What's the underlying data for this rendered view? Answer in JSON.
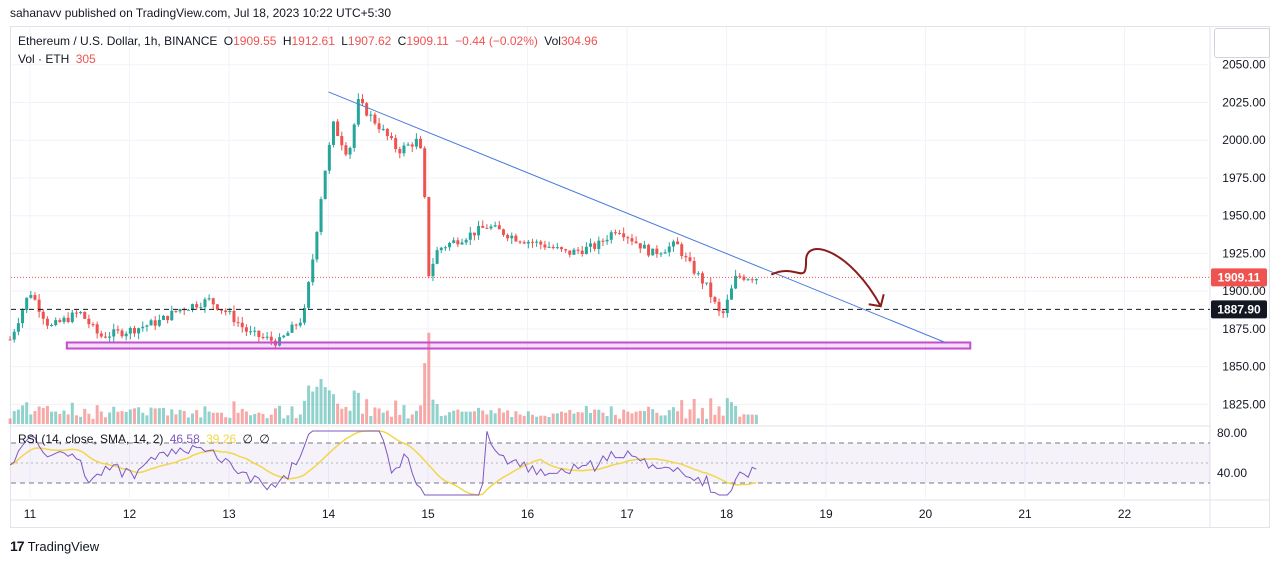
{
  "publish_line": "sahanavv published on TradingView.com, Jul 18, 2023 10:22 UTC+5:30",
  "legend": {
    "symbol": "Ethereum / U.S. Dollar, 1h, BINANCE",
    "o_label": "O",
    "o_value": "1909.55",
    "h_label": "H",
    "h_value": "1912.61",
    "l_label": "L",
    "l_value": "1907.62",
    "c_label": "C",
    "c_value": "1909.11",
    "change": "−0.44 (−0.02%)",
    "vol_label": "Vol",
    "vol_value": "304.96",
    "vol_line_label": "Vol · ETH",
    "vol_line_value": "305"
  },
  "rsi_legend": {
    "label": "RSI (14, close, SMA, 14, 2)",
    "rsi_value": "46.58",
    "ma_value": "39.26",
    "extra1": "∅",
    "extra2": "∅"
  },
  "footer": {
    "brand": "TradingView"
  },
  "colors": {
    "up": "#26a69a",
    "down": "#ef5350",
    "trendline": "#4a7bdc",
    "zone": "#c54bd1",
    "arrow": "#8b1c1c",
    "rsi": "#7e57c2",
    "rsi_ma": "#f2d64b"
  },
  "chart_data": {
    "type": "candlestick",
    "symbol": "Ethereum / U.S. Dollar",
    "interval": "1h",
    "exchange": "BINANCE",
    "x_ticks": [
      "11",
      "12",
      "13",
      "14",
      "15",
      "16",
      "17",
      "18",
      "19",
      "20",
      "21",
      "22"
    ],
    "y_ticks": [
      "2050.00",
      "2025.00",
      "2000.00",
      "1975.00",
      "1950.00",
      "1925.00",
      "1900.00",
      "1875.00",
      "1850.00",
      "1825.00"
    ],
    "y_range": [
      1812,
      2075
    ],
    "last_price": "1909.11",
    "support_level": "1887.90",
    "support_zone": [
      1862,
      1866
    ],
    "trendline": [
      [
        14.0,
        2032
      ],
      [
        20.2,
        1866
      ]
    ],
    "projection": [
      [
        18.45,
        1911
      ],
      [
        18.95,
        1920
      ],
      [
        19.55,
        1890
      ]
    ],
    "candle_anchors": [
      [
        10.8,
        1868
      ],
      [
        11.0,
        1900
      ],
      [
        11.2,
        1876
      ],
      [
        11.5,
        1886
      ],
      [
        11.7,
        1870
      ],
      [
        12.0,
        1874
      ],
      [
        12.3,
        1880
      ],
      [
        12.5,
        1888
      ],
      [
        12.8,
        1894
      ],
      [
        13.0,
        1885
      ],
      [
        13.2,
        1872
      ],
      [
        13.5,
        1866
      ],
      [
        13.75,
        1883
      ],
      [
        13.85,
        1925
      ],
      [
        13.95,
        1975
      ],
      [
        14.05,
        2010
      ],
      [
        14.2,
        1990
      ],
      [
        14.3,
        2025
      ],
      [
        14.5,
        2010
      ],
      [
        14.7,
        1993
      ],
      [
        14.9,
        2000
      ],
      [
        14.95,
        1985
      ],
      [
        15.0,
        1910
      ],
      [
        15.1,
        1928
      ],
      [
        15.3,
        1934
      ],
      [
        15.6,
        1943
      ],
      [
        15.9,
        1935
      ],
      [
        16.2,
        1930
      ],
      [
        16.4,
        1925
      ],
      [
        16.7,
        1930
      ],
      [
        16.9,
        1942
      ],
      [
        17.1,
        1932
      ],
      [
        17.25,
        1925
      ],
      [
        17.5,
        1931
      ],
      [
        17.6,
        1920
      ],
      [
        17.8,
        1903
      ],
      [
        17.95,
        1882
      ],
      [
        18.1,
        1910
      ],
      [
        18.3,
        1909
      ]
    ],
    "rsi_ticks": [
      "80.00",
      "40.00"
    ],
    "rsi_range": [
      15,
      85
    ],
    "rsi_bands": [
      70,
      30
    ],
    "rsi_last": 46.58,
    "rsi_ma_last": 39.26,
    "volume_last": 304.96
  }
}
